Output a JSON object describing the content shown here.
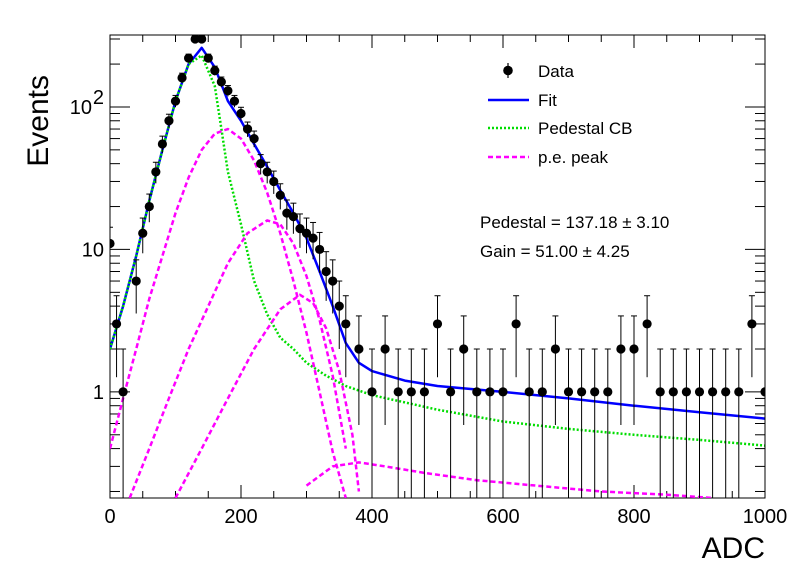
{
  "chart_data": {
    "type": "scatter",
    "xlabel": "ADC",
    "ylabel": "Events",
    "xlim": [
      0,
      1000
    ],
    "ylim": [
      0.18,
      320
    ],
    "yscale": "log",
    "x_ticks": [
      {
        "value": 0,
        "label": "0"
      },
      {
        "value": 200,
        "label": "200"
      },
      {
        "value": 400,
        "label": "400"
      },
      {
        "value": 600,
        "label": "600"
      },
      {
        "value": 800,
        "label": "800"
      },
      {
        "value": 1000,
        "label": "1000"
      }
    ],
    "y_ticks": [
      {
        "value": 1,
        "label": "1",
        "sup": ""
      },
      {
        "value": 10,
        "label": "10",
        "sup": ""
      },
      {
        "value": 100,
        "label": "10",
        "sup": "2"
      }
    ],
    "legend": {
      "position": "top-right",
      "entries": [
        {
          "label": "Data",
          "style": "marker",
          "color": "#000000"
        },
        {
          "label": "Fit",
          "style": "solid",
          "color": "#0000ff"
        },
        {
          "label": "Pedestal CB",
          "style": "dotted",
          "color": "#00dd00"
        },
        {
          "label": "p.e. peak",
          "style": "dashed",
          "color": "#ff00ff"
        }
      ]
    },
    "annotations": [
      "Pedestal = 137.18 ± 3.10",
      "Gain = 51.00 ± 4.25"
    ],
    "data_points": {
      "color": "#000000",
      "x": [
        0,
        10,
        20,
        40,
        50,
        60,
        70,
        80,
        90,
        100,
        110,
        120,
        130,
        140,
        150,
        160,
        170,
        180,
        190,
        200,
        210,
        220,
        230,
        240,
        250,
        260,
        270,
        280,
        290,
        300,
        310,
        320,
        330,
        340,
        350,
        360,
        380,
        400,
        420,
        440,
        460,
        480,
        500,
        520,
        540,
        560,
        580,
        600,
        620,
        640,
        660,
        680,
        700,
        720,
        740,
        760,
        780,
        800,
        820,
        840,
        860,
        880,
        900,
        920,
        940,
        960,
        980,
        1000
      ],
      "y": [
        11,
        3,
        1,
        6,
        13,
        20,
        35,
        55,
        80,
        110,
        160,
        220,
        300,
        300,
        220,
        180,
        150,
        130,
        110,
        90,
        70,
        60,
        40,
        35,
        30,
        24,
        18,
        17,
        14,
        13,
        12,
        10,
        7,
        6,
        4,
        3,
        2,
        1,
        2,
        1,
        1,
        1,
        3,
        1,
        2,
        1,
        1,
        1,
        3,
        1,
        1,
        2,
        1,
        1,
        1,
        1,
        2,
        2,
        3,
        1,
        1,
        1,
        1,
        1,
        1,
        1,
        3,
        1
      ]
    },
    "series": [
      {
        "name": "Fit",
        "style": "solid",
        "color": "#0000ff",
        "x": [
          0,
          20,
          40,
          60,
          80,
          100,
          120,
          140,
          160,
          180,
          200,
          220,
          240,
          260,
          280,
          300,
          320,
          340,
          360,
          380,
          400,
          450,
          500,
          600,
          700,
          800,
          900,
          1000
        ],
        "y": [
          2,
          4,
          9,
          22,
          50,
          110,
          200,
          260,
          190,
          110,
          80,
          55,
          38,
          26,
          18,
          12,
          7,
          4,
          2.2,
          1.6,
          1.4,
          1.2,
          1.1,
          1.0,
          0.9,
          0.8,
          0.72,
          0.65
        ]
      },
      {
        "name": "Pedestal CB",
        "style": "dotted",
        "color": "#00dd00",
        "x": [
          0,
          20,
          40,
          60,
          80,
          100,
          120,
          140,
          160,
          170,
          180,
          200,
          220,
          240,
          260,
          280,
          300,
          330,
          360,
          400,
          500,
          600,
          700,
          800,
          900,
          1000
        ],
        "y": [
          2,
          4,
          9,
          22,
          50,
          110,
          200,
          230,
          140,
          70,
          35,
          15,
          6,
          3.5,
          2.4,
          2.0,
          1.6,
          1.3,
          1.1,
          0.95,
          0.75,
          0.62,
          0.55,
          0.5,
          0.46,
          0.42
        ]
      },
      {
        "name": "p.e. peak",
        "style": "dashed",
        "color": "#ff00ff",
        "x": [
          0,
          20,
          40,
          60,
          80,
          100,
          120,
          140,
          160,
          180,
          200,
          220,
          240,
          260,
          280,
          300,
          320,
          340,
          360
        ],
        "y": [
          0.4,
          0.9,
          2,
          4.5,
          9,
          18,
          32,
          50,
          65,
          70,
          60,
          42,
          25,
          13,
          6,
          2.6,
          1.0,
          0.38,
          0.18
        ]
      },
      {
        "name": "p.e. peak",
        "style": "dashed",
        "color": "#ff00ff",
        "x": [
          30,
          60,
          90,
          120,
          150,
          180,
          210,
          240,
          260,
          280,
          300,
          320,
          340,
          360
        ],
        "y": [
          0.18,
          0.4,
          0.9,
          2.0,
          4.0,
          8.0,
          13,
          16,
          15,
          11,
          6.5,
          3.2,
          1.3,
          0.4
        ]
      },
      {
        "name": "p.e. peak",
        "style": "dashed",
        "color": "#ff00ff",
        "x": [
          100,
          140,
          180,
          220,
          260,
          290,
          310,
          330,
          350,
          370,
          380
        ],
        "y": [
          0.18,
          0.4,
          0.9,
          2.0,
          3.8,
          4.8,
          4.2,
          2.8,
          1.4,
          0.5,
          0.2
        ]
      },
      {
        "name": "p.e. peak",
        "style": "dashed",
        "color": "#ff00ff",
        "x": [
          300,
          340,
          380,
          420,
          480,
          560,
          650,
          750,
          850,
          920
        ],
        "y": [
          0.22,
          0.3,
          0.32,
          0.3,
          0.27,
          0.24,
          0.22,
          0.2,
          0.19,
          0.18
        ]
      }
    ]
  }
}
